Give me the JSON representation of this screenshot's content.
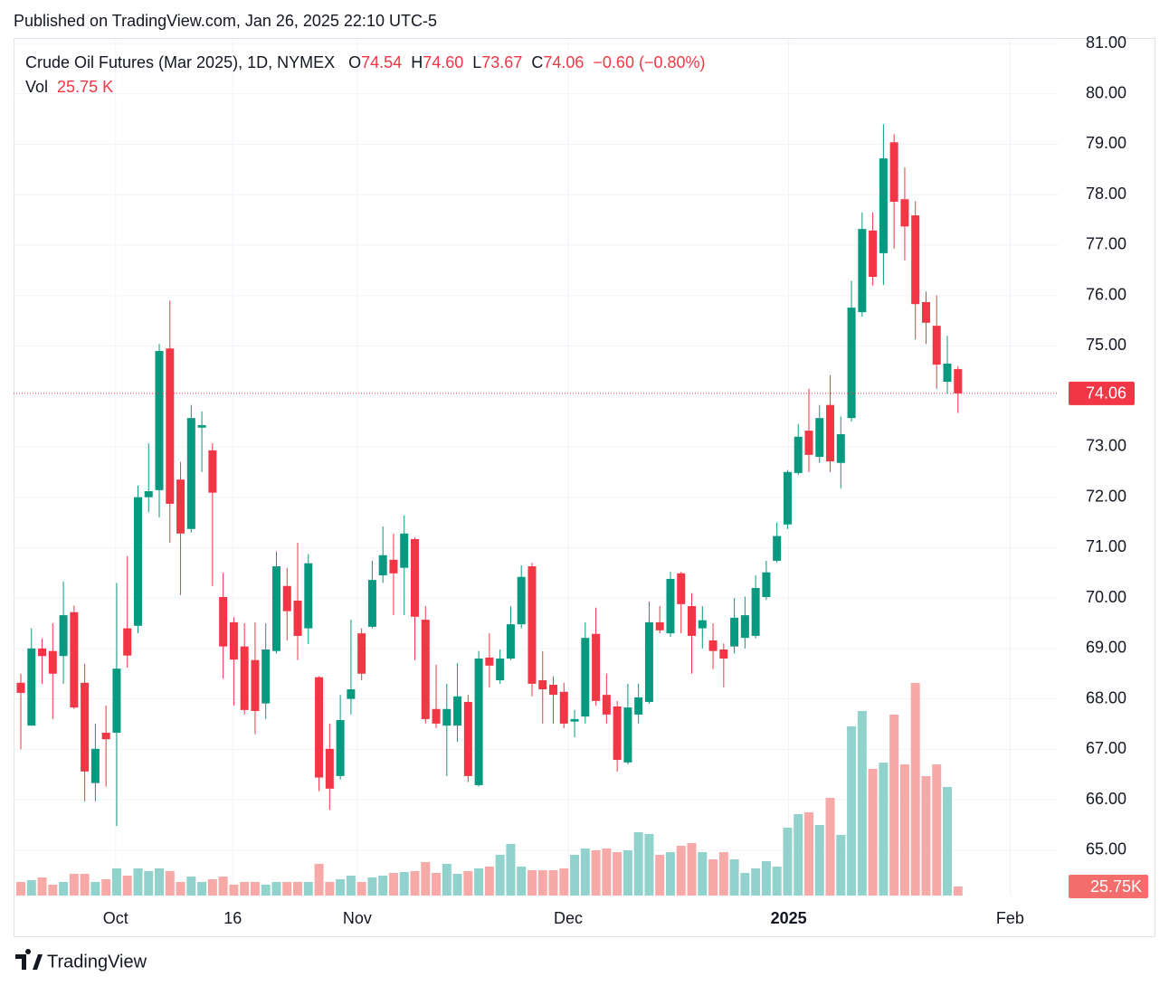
{
  "header": {
    "published": "Published on TradingView.com, Jan 26, 2025 22:10 UTC-5"
  },
  "chart_data": {
    "type": "candlestick",
    "title": "Crude Oil Futures (Mar 2025), 1D, NYMEX",
    "legend": {
      "o_label": "O",
      "open": "74.54",
      "h_label": "H",
      "high": "74.60",
      "l_label": "L",
      "low": "73.67",
      "c_label": "C",
      "close": "74.06",
      "change": "−0.60 (−0.80%)",
      "vol_label": "Vol",
      "vol": "25.75 K"
    },
    "open": [
      68.32,
      67.47,
      69.0,
      68.95,
      68.85,
      69.72,
      68.32,
      66.33,
      67.33,
      67.33,
      69.4,
      69.45,
      72.0,
      72.14,
      74.95,
      72.35,
      71.37,
      73.38,
      72.93,
      70.02,
      69.52,
      69.04,
      68.77,
      67.91,
      68.95,
      70.24,
      69.95,
      69.4,
      68.43,
      67.01,
      66.47,
      68.0,
      69.3,
      69.43,
      70.45,
      70.76,
      70.6,
      71.17,
      69.57,
      67.8,
      67.47,
      67.47,
      67.94,
      66.29,
      68.82,
      68.37,
      68.8,
      69.48,
      70.63,
      68.37,
      68.28,
      68.14,
      67.55,
      67.65,
      69.29,
      68.08,
      67.85,
      66.74,
      67.69,
      67.94,
      69.52,
      69.3,
      70.49,
      69.84,
      69.4,
      69.16,
      68.98,
      69.04,
      69.21,
      69.25,
      70.02,
      70.74,
      71.46,
      72.48,
      73.32,
      72.8,
      73.83,
      72.68,
      73.57,
      75.67,
      77.29,
      76.84,
      79.04,
      77.91,
      77.59,
      75.87,
      75.4,
      74.29,
      74.54
    ],
    "high": [
      68.5,
      69.4,
      69.2,
      69.5,
      70.33,
      69.85,
      68.7,
      67.51,
      67.87,
      70.3,
      70.83,
      72.23,
      73.07,
      75.04,
      75.9,
      72.7,
      73.83,
      73.7,
      73.07,
      70.5,
      69.62,
      69.5,
      69.52,
      69.5,
      70.92,
      70.6,
      71.1,
      70.87,
      68.45,
      67.51,
      68.08,
      69.57,
      69.4,
      70.74,
      71.42,
      71.28,
      71.64,
      71.2,
      69.84,
      68.68,
      68.3,
      68.71,
      68.08,
      68.95,
      69.3,
      68.98,
      69.84,
      70.65,
      70.7,
      68.95,
      68.45,
      68.32,
      67.78,
      69.52,
      69.81,
      68.5,
      67.96,
      68.3,
      68.3,
      69.93,
      69.84,
      70.52,
      70.52,
      70.1,
      69.84,
      69.5,
      69.1,
      70.0,
      70.03,
      70.45,
      70.74,
      71.5,
      72.54,
      73.45,
      74.15,
      73.83,
      74.42,
      73.6,
      76.29,
      77.65,
      77.65,
      79.4,
      79.2,
      78.54,
      77.87,
      76.08,
      76.0,
      75.2,
      74.6
    ],
    "low": [
      67.0,
      67.47,
      68.3,
      67.6,
      68.3,
      67.8,
      65.97,
      65.97,
      66.26,
      65.48,
      68.62,
      69.3,
      71.7,
      71.6,
      71.1,
      70.06,
      71.3,
      72.5,
      70.24,
      68.4,
      67.87,
      67.69,
      67.3,
      67.6,
      68.9,
      69.16,
      68.77,
      69.09,
      66.17,
      65.8,
      66.4,
      67.69,
      68.37,
      69.4,
      70.3,
      69.66,
      69.66,
      68.77,
      67.51,
      67.42,
      66.47,
      67.15,
      66.35,
      66.26,
      68.23,
      68.3,
      68.77,
      69.4,
      68.05,
      67.51,
      67.51,
      67.42,
      67.24,
      67.51,
      67.87,
      67.51,
      66.56,
      66.7,
      67.51,
      67.9,
      69.3,
      69.23,
      69.3,
      68.5,
      69.0,
      68.59,
      68.23,
      68.9,
      69.0,
      69.2,
      69.96,
      70.7,
      71.37,
      72.44,
      72.5,
      72.68,
      72.5,
      72.18,
      73.5,
      75.58,
      76.2,
      76.21,
      76.93,
      76.7,
      75.13,
      75.04,
      74.15,
      74.05,
      73.67
    ],
    "close": [
      68.12,
      69.0,
      68.85,
      68.5,
      69.66,
      67.83,
      66.56,
      67.01,
      67.2,
      68.6,
      68.86,
      72.0,
      72.12,
      74.9,
      71.87,
      71.28,
      73.57,
      73.43,
      72.09,
      69.04,
      68.78,
      67.78,
      67.76,
      68.98,
      70.63,
      69.74,
      69.25,
      70.69,
      66.44,
      66.22,
      67.58,
      68.19,
      68.5,
      70.36,
      70.85,
      70.49,
      71.28,
      69.63,
      67.6,
      67.51,
      67.8,
      68.05,
      66.47,
      68.8,
      68.66,
      68.8,
      69.48,
      70.42,
      68.3,
      68.19,
      68.08,
      67.51,
      67.6,
      69.21,
      67.96,
      67.69,
      66.79,
      67.83,
      68.03,
      69.52,
      69.36,
      70.38,
      69.88,
      69.25,
      69.56,
      68.95,
      68.8,
      69.61,
      69.66,
      70.2,
      70.51,
      71.23,
      72.5,
      73.2,
      72.84,
      73.57,
      72.71,
      73.25,
      75.76,
      77.32,
      76.37,
      78.72,
      77.86,
      77.37,
      75.83,
      75.46,
      74.63,
      74.65,
      74.06
    ],
    "volume": [
      38.6,
      43.8,
      51.5,
      30.9,
      38.6,
      61.8,
      61.8,
      38.6,
      46.4,
      77.3,
      56.7,
      77.3,
      69.5,
      77.3,
      69.5,
      38.6,
      54.1,
      38.6,
      46.4,
      54.1,
      30.9,
      38.6,
      38.6,
      30.9,
      38.6,
      38.6,
      38.6,
      38.6,
      90.1,
      38.6,
      46.4,
      56.7,
      38.6,
      51.5,
      56.7,
      64.4,
      67.0,
      69.5,
      95.3,
      64.4,
      90.1,
      61.8,
      69.5,
      77.3,
      82.4,
      115.9,
      146.8,
      82.4,
      72.1,
      72.1,
      72.1,
      77.3,
      115.9,
      133.9,
      128.8,
      133.9,
      123.6,
      128.8,
      180.3,
      175.1,
      115.9,
      123.6,
      141.6,
      149.4,
      123.6,
      103.0,
      123.6,
      103.0,
      64.4,
      77.3,
      97.9,
      82.4,
      193.1,
      231.8,
      236.9,
      200.9,
      278.1,
      172.5,
      481.5,
      525.3,
      360.5,
      378.5,
      515.0,
      373.4,
      605.1,
      339.9,
      373.4,
      309.0,
      25.75
    ],
    "up_color": "#089981",
    "down_color": "#f23645",
    "up_volume_color": "#92d2cc",
    "down_volume_color": "#f7a9a7",
    "ylim": [
      64.1,
      81.09
    ],
    "yticks": [
      {
        "value": 65,
        "label": "65.00"
      },
      {
        "value": 66,
        "label": "66.00"
      },
      {
        "value": 67,
        "label": "67.00"
      },
      {
        "value": 68,
        "label": "68.00"
      },
      {
        "value": 69,
        "label": "69.00"
      },
      {
        "value": 70,
        "label": "70.00"
      },
      {
        "value": 71,
        "label": "71.00"
      },
      {
        "value": 72,
        "label": "72.00"
      },
      {
        "value": 73,
        "label": "73.00"
      },
      {
        "value": 74,
        "label": "74.00"
      },
      {
        "value": 75,
        "label": "75.00"
      },
      {
        "value": 76,
        "label": "76.00"
      },
      {
        "value": 77,
        "label": "77.00"
      },
      {
        "value": 78,
        "label": "78.00"
      },
      {
        "value": 79,
        "label": "79.00"
      },
      {
        "value": 80,
        "label": "80.00"
      },
      {
        "value": 81,
        "label": "81.00"
      }
    ],
    "xlim": [
      -0.68,
      97.45
    ],
    "xticks": [
      {
        "value": 8.9,
        "label": "Oct"
      },
      {
        "value": 19.9,
        "label": "16"
      },
      {
        "value": 31.6,
        "label": "Nov"
      },
      {
        "value": 51.4,
        "label": "Dec"
      },
      {
        "value": 72.1,
        "label": "2025"
      },
      {
        "value": 92.9,
        "label": "Feb"
      }
    ],
    "last_price": {
      "value": 74.06,
      "label": "74.06"
    },
    "volume_tag": "25.75K",
    "grid": true
  },
  "footer": {
    "brand": "TradingView"
  }
}
